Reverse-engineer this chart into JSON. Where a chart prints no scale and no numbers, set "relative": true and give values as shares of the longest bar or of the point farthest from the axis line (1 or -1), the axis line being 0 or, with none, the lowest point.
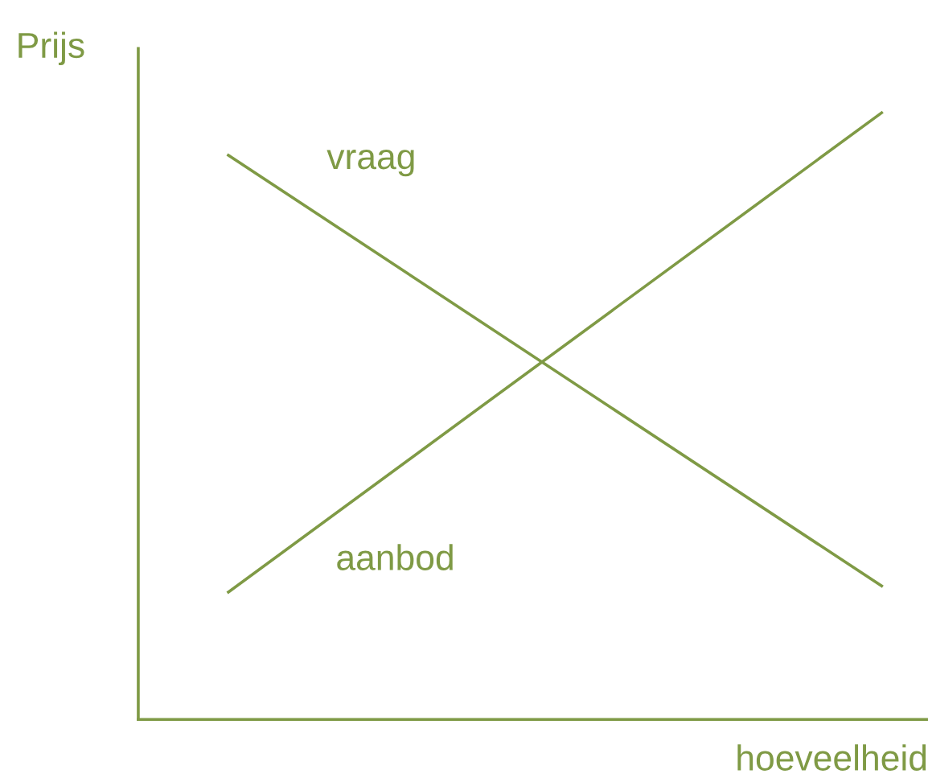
{
  "chart_data": {
    "type": "line",
    "relative": true,
    "xlabel": "hoeveelheid",
    "ylabel": "Prijs",
    "categories": [
      null,
      null
    ],
    "series": [
      {
        "name": "vraag",
        "color": "#7f9a45",
        "values": [
          0.93,
          0.22
        ]
      },
      {
        "name": "aanbod",
        "color": "#7f9a45",
        "values": [
          0.21,
          1
        ]
      }
    ]
  }
}
